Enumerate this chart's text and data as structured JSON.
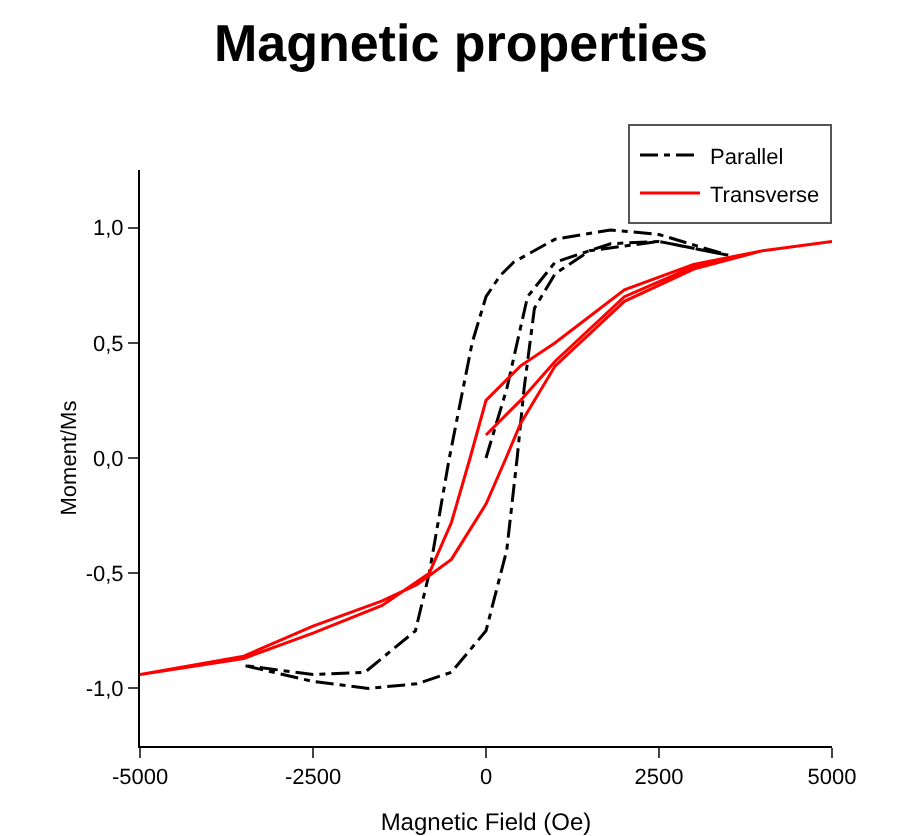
{
  "chart_data": {
    "type": "line",
    "title": "Magnetic properties",
    "xlabel": "Magnetic Field (Oe)",
    "ylabel": "Moment/Ms",
    "xlim": [
      -5000,
      5000
    ],
    "xticks": [
      -5000,
      -2500,
      0,
      2500,
      5000
    ],
    "ylim": [
      -1.25,
      1.25
    ],
    "yticks": [
      {
        "value": -1,
        "label": "-1,0"
      },
      {
        "value": -0.5,
        "label": "-0,5"
      },
      {
        "value": 0,
        "label": "0,0"
      },
      {
        "value": 0.5,
        "label": "0,5"
      },
      {
        "value": 1,
        "label": "1,0"
      }
    ],
    "grid": false,
    "legend": "top right",
    "marker": "none",
    "series": [
      {
        "name": "Parallel",
        "color": "#000000",
        "line_style": "dashdot",
        "x": [
          0,
          300,
          600,
          1000,
          1800,
          2500,
          3500,
          2500,
          1800,
          1000,
          400,
          200,
          0,
          -200,
          -530,
          -820,
          -1020,
          -1750,
          -2500,
          -3500,
          -2500,
          -1700,
          -1000,
          -500,
          0,
          300,
          450,
          550,
          700,
          1000,
          1500,
          2500,
          3500
        ],
        "values": [
          0,
          0.3,
          0.7,
          0.85,
          0.93,
          0.94,
          0.88,
          0.97,
          0.99,
          0.95,
          0.85,
          0.79,
          0.7,
          0.5,
          0,
          -0.5,
          -0.75,
          -0.93,
          -0.94,
          -0.9,
          -0.97,
          -1.0,
          -0.98,
          -0.93,
          -0.75,
          -0.4,
          0,
          0.3,
          0.65,
          0.8,
          0.9,
          0.94,
          0.88
        ]
      },
      {
        "name": "Transverse",
        "color": "#ff0000",
        "line_style": "solid",
        "x": [
          0,
          500,
          1000,
          2000,
          3000,
          4000,
          5000,
          4000,
          3000,
          2000,
          1000,
          500,
          0,
          -230,
          -500,
          -820,
          -1500,
          -2500,
          -3500,
          -5000,
          -3500,
          -2500,
          -1500,
          -1000,
          -500,
          0,
          290,
          500,
          1000,
          2000,
          3000,
          4000,
          5000
        ],
        "values": [
          0.1,
          0.25,
          0.42,
          0.7,
          0.83,
          0.9,
          0.94,
          0.9,
          0.84,
          0.73,
          0.5,
          0.4,
          0.25,
          0,
          -0.28,
          -0.5,
          -0.64,
          -0.76,
          -0.87,
          -0.94,
          -0.86,
          -0.73,
          -0.62,
          -0.55,
          -0.44,
          -0.2,
          0,
          0.15,
          0.4,
          0.68,
          0.82,
          0.9,
          0.94
        ]
      }
    ]
  }
}
